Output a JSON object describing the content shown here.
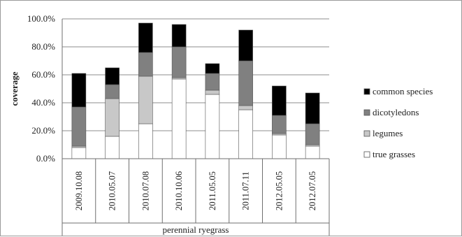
{
  "chart_data": {
    "type": "bar",
    "stacked": true,
    "categories": [
      "2009.10.08",
      "2010.05.07",
      "2010.07.08",
      "2010.10.06",
      "2011.05.05",
      "2011.07.11",
      "2012.05.05",
      "2012.07.05"
    ],
    "group_label": "perennial ryegrass",
    "ylabel": "coverage",
    "ylim": [
      0,
      100
    ],
    "yticks": [
      "0.0%",
      "20.0%",
      "40.0%",
      "60.0%",
      "80.0%",
      "100.0%"
    ],
    "grid": true,
    "legend_position": "right",
    "series": [
      {
        "name": "true grasses",
        "color": "#ffffff",
        "values": [
          8,
          16,
          25,
          57,
          46,
          35,
          17,
          9
        ]
      },
      {
        "name": "legumes",
        "color": "#c8c8c8",
        "values": [
          1,
          27,
          34,
          1,
          3,
          3,
          1,
          1
        ]
      },
      {
        "name": "dicotyledons",
        "color": "#808080",
        "values": [
          28,
          10,
          17,
          22,
          12,
          32,
          13,
          15
        ]
      },
      {
        "name": "common species",
        "color": "#000000",
        "values": [
          24,
          12,
          21,
          16,
          7,
          22,
          21,
          22
        ]
      }
    ]
  }
}
